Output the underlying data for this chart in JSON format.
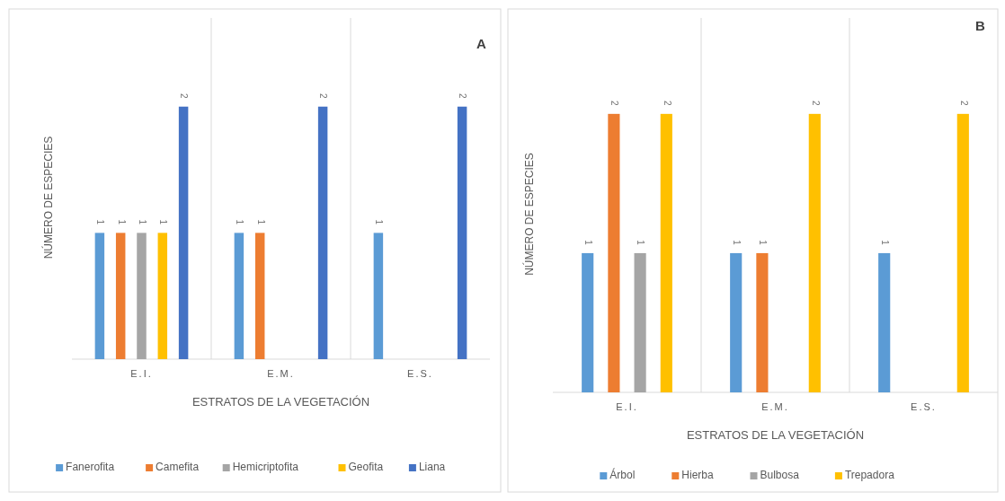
{
  "chart_data": [
    {
      "type": "bar",
      "title": "A",
      "xlabel": "ESTRATOS DE LA VEGETACIÓN",
      "ylabel": "NÚMERO DE ESPECIES",
      "categories": [
        "E.I.",
        "E.M.",
        "E.S."
      ],
      "data_labels": true,
      "grid": "x",
      "legend": "bottom",
      "series": [
        {
          "name": "Fanerofita",
          "color": "#5b9bd5",
          "values": [
            1,
            1,
            1
          ]
        },
        {
          "name": "Camefita",
          "color": "#ed7d31",
          "values": [
            1,
            1,
            null
          ]
        },
        {
          "name": "Hemicriptofita",
          "color": "#a5a5a5",
          "values": [
            1,
            null,
            null
          ]
        },
        {
          "name": "Geofita",
          "color": "#ffc000",
          "values": [
            1,
            null,
            null
          ]
        },
        {
          "name": "Liana",
          "color": "#4472c4",
          "values": [
            2,
            2,
            2
          ]
        }
      ]
    },
    {
      "type": "bar",
      "title": "B",
      "xlabel": "ESTRATOS DE LA VEGETACIÓN",
      "ylabel": "NÚMERO DE ESPECIES",
      "categories": [
        "E.I.",
        "E.M.",
        "E.S."
      ],
      "data_labels": true,
      "grid": "x",
      "legend": "bottom",
      "series": [
        {
          "name": "Árbol",
          "color": "#5b9bd5",
          "values": [
            1,
            1,
            1
          ]
        },
        {
          "name": "Hierba",
          "color": "#ed7d31",
          "values": [
            2,
            1,
            null
          ]
        },
        {
          "name": "Bulbosa",
          "color": "#a5a5a5",
          "values": [
            1,
            null,
            null
          ]
        },
        {
          "name": "Trepadora",
          "color": "#ffc000",
          "values": [
            2,
            2,
            2
          ]
        }
      ]
    }
  ]
}
